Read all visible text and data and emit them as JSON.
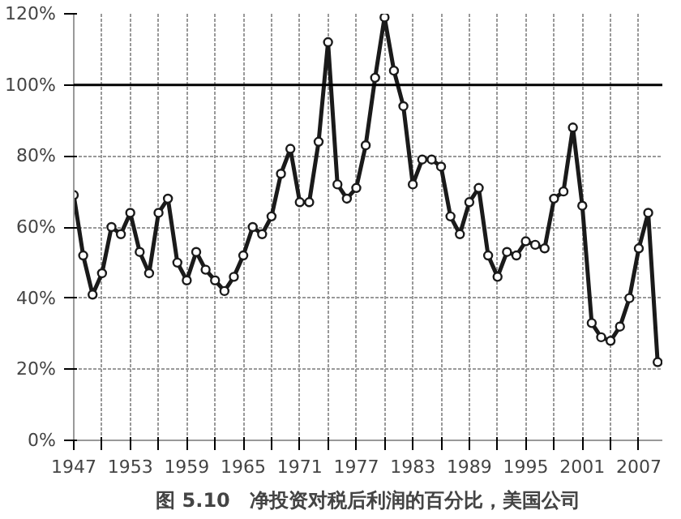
{
  "chart_data": {
    "type": "line",
    "title": "图 5.10　净投资对税后利润的百分比，美国公司",
    "x": [
      1947,
      1948,
      1949,
      1950,
      1951,
      1952,
      1953,
      1954,
      1955,
      1956,
      1957,
      1958,
      1959,
      1960,
      1961,
      1962,
      1963,
      1964,
      1965,
      1966,
      1967,
      1968,
      1969,
      1970,
      1971,
      1972,
      1973,
      1974,
      1975,
      1976,
      1977,
      1978,
      1979,
      1980,
      1981,
      1982,
      1983,
      1984,
      1985,
      1986,
      1987,
      1988,
      1989,
      1990,
      1991,
      1992,
      1993,
      1994,
      1995,
      1996,
      1997,
      1998,
      1999,
      2000,
      2001,
      2002,
      2003,
      2004,
      2005,
      2006,
      2007,
      2008,
      2009
    ],
    "series": [
      {
        "color": "#1a1a1a",
        "values": [
          69,
          52,
          41,
          47,
          60,
          58,
          64,
          53,
          47,
          64,
          68,
          50,
          45,
          53,
          48,
          45,
          42,
          46,
          52,
          60,
          58,
          63,
          75,
          82,
          67,
          67,
          84,
          112,
          72,
          68,
          71,
          83,
          102,
          119,
          104,
          94,
          72,
          79,
          79,
          77,
          63,
          58,
          67,
          71,
          52,
          46,
          53,
          52,
          56,
          55,
          54,
          68,
          70,
          88,
          66,
          33,
          29,
          28,
          32,
          40,
          54,
          64,
          22
        ]
      }
    ],
    "xlim": [
      1947,
      2009.5
    ],
    "ylim": [
      0,
      120
    ],
    "xticks": [
      1947,
      {
        "value": 1950,
        "label": null
      },
      1953,
      {
        "value": 1956,
        "label": null
      },
      1959,
      {
        "value": 1962,
        "label": null
      },
      1965,
      {
        "value": 1968,
        "label": null
      },
      1971,
      {
        "value": 1974,
        "label": null
      },
      1977,
      {
        "value": 1980,
        "label": null
      },
      1983,
      {
        "value": 1986,
        "label": null
      },
      1989,
      {
        "value": 1992,
        "label": null
      },
      1995,
      {
        "value": 1998,
        "label": null
      },
      2001,
      {
        "value": 2004,
        "label": null
      },
      2007
    ],
    "yticks": [
      {
        "value": 0,
        "label": "0%"
      },
      {
        "value": 20,
        "label": "20%"
      },
      {
        "value": 40,
        "label": "40%"
      },
      {
        "value": 60,
        "label": "60%"
      },
      {
        "value": 80,
        "label": "80%"
      },
      {
        "value": 100,
        "label": "100%"
      },
      {
        "value": 120,
        "label": "120%"
      }
    ],
    "ref_lines": [
      {
        "axis": "y",
        "value": 100,
        "color": "#000000"
      }
    ],
    "grid": true,
    "marker": "circle",
    "line_style": "solid"
  }
}
